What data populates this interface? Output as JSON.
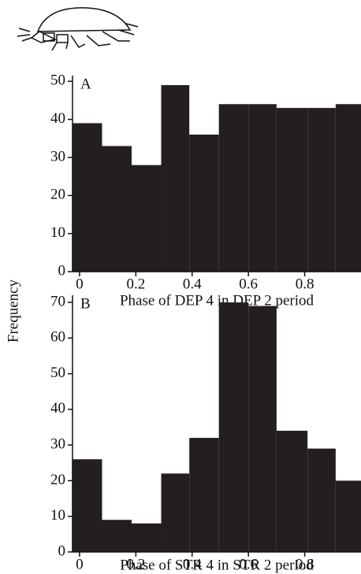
{
  "ylabel": "Frequency",
  "chart_data": [
    {
      "type": "histogram",
      "label": "A",
      "xlabel": "Phase of  DEP 4 in DEP 2 period",
      "bins": [
        -0.025,
        0.08,
        0.185,
        0.29,
        0.39,
        0.495,
        0.6,
        0.7,
        0.81,
        0.91,
        1.0
      ],
      "values": [
        39,
        33,
        28,
        49,
        36,
        44,
        44,
        43,
        43,
        44
      ],
      "color": "#231f20",
      "xlim": [
        -0.025,
        1.0
      ],
      "xticks": [
        0,
        0.2,
        0.4,
        0.6,
        0.8
      ],
      "ylim": [
        0,
        51.5
      ],
      "yticks": [
        0,
        10,
        20,
        30,
        40,
        50
      ]
    },
    {
      "type": "histogram",
      "label": "B",
      "xlabel": "Phase of  STR 4 in STR 2 period",
      "bins": [
        -0.025,
        0.08,
        0.185,
        0.29,
        0.39,
        0.495,
        0.6,
        0.7,
        0.81,
        0.91,
        1.0
      ],
      "values": [
        26,
        9,
        8,
        22,
        32,
        70,
        69,
        34,
        29,
        20
      ],
      "color": "#231f20",
      "xlim": [
        -0.025,
        1.0
      ],
      "xticks": [
        0,
        0.2,
        0.4,
        0.6,
        0.8
      ],
      "ylim": [
        0,
        72
      ],
      "yticks": [
        0,
        10,
        20,
        30,
        40,
        50,
        60,
        70
      ]
    }
  ]
}
